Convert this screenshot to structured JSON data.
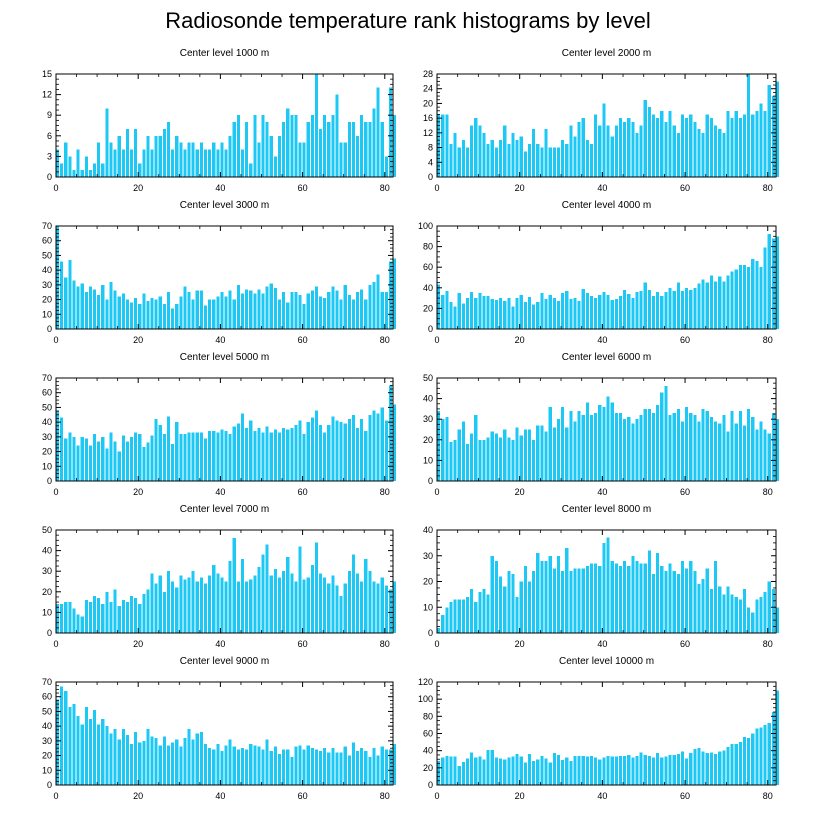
{
  "title": "Radiosonde temperature rank histograms by level",
  "colors": {
    "bar": "#1ec8f5",
    "axis": "#000000",
    "background": "#ffffff"
  },
  "chart_data": [
    {
      "type": "bar",
      "title": "Center level 1000 m",
      "x_start": 0,
      "xlim": [
        0,
        82
      ],
      "xticks": [
        0,
        20,
        40,
        60,
        80
      ],
      "ylim": [
        0,
        15
      ],
      "yticks": [
        0,
        3,
        6,
        9,
        12,
        15
      ],
      "values": [
        4,
        2,
        5,
        3,
        1,
        4,
        1,
        3,
        1,
        2,
        5,
        2,
        10,
        5,
        4,
        6,
        4,
        7,
        4,
        7,
        2,
        4,
        6,
        4,
        6,
        6,
        7,
        8,
        4,
        6,
        5,
        4,
        5,
        5,
        4,
        5,
        4,
        4,
        5,
        4,
        5,
        4,
        6,
        8,
        9,
        4,
        8,
        2,
        9,
        5,
        9,
        8,
        6,
        3,
        6,
        8,
        10,
        9,
        9,
        5,
        5,
        8,
        9,
        15,
        7,
        9,
        8,
        9,
        12,
        5,
        5,
        8,
        8,
        6,
        9,
        8,
        8,
        10,
        13,
        8,
        3,
        13,
        9
      ]
    },
    {
      "type": "bar",
      "title": "Center level 2000 m",
      "x_start": 0,
      "xlim": [
        0,
        82
      ],
      "xticks": [
        0,
        20,
        40,
        60,
        80
      ],
      "ylim": [
        0,
        28
      ],
      "yticks": [
        0,
        4,
        8,
        12,
        16,
        20,
        24,
        28
      ],
      "values": [
        17,
        17,
        17,
        9,
        12,
        8,
        10,
        8,
        14,
        16,
        14,
        12,
        9,
        10,
        8,
        10,
        14,
        9,
        12,
        10,
        11,
        7,
        9,
        13,
        9,
        8,
        13,
        8,
        8,
        8,
        10,
        9,
        14,
        11,
        15,
        16,
        10,
        9,
        17,
        14,
        20,
        14,
        11,
        14,
        16,
        15,
        16,
        15,
        12,
        14,
        21,
        19,
        17,
        16,
        18,
        15,
        18,
        14,
        12,
        17,
        16,
        17,
        15,
        13,
        12,
        17,
        16,
        14,
        13,
        12,
        18,
        16,
        18,
        16,
        17,
        28,
        17,
        18,
        20,
        18,
        25,
        22,
        26
      ]
    },
    {
      "type": "bar",
      "title": "Center level 3000 m",
      "x_start": 0,
      "xlim": [
        0,
        82
      ],
      "xticks": [
        0,
        20,
        40,
        60,
        80
      ],
      "ylim": [
        0,
        70
      ],
      "yticks": [
        0,
        10,
        20,
        30,
        40,
        50,
        60,
        70
      ],
      "values": [
        70,
        46,
        35,
        47,
        33,
        29,
        31,
        25,
        29,
        27,
        23,
        30,
        20,
        32,
        26,
        22,
        24,
        20,
        18,
        21,
        17,
        24,
        19,
        21,
        20,
        22,
        17,
        25,
        14,
        17,
        22,
        29,
        25,
        20,
        26,
        26,
        16,
        20,
        20,
        22,
        25,
        22,
        26,
        20,
        30,
        24,
        27,
        26,
        24,
        27,
        24,
        29,
        31,
        28,
        20,
        25,
        18,
        25,
        25,
        23,
        17,
        24,
        26,
        29,
        22,
        21,
        25,
        29,
        26,
        20,
        30,
        23,
        20,
        25,
        27,
        20,
        30,
        32,
        37,
        25,
        25,
        46,
        48
      ]
    },
    {
      "type": "bar",
      "title": "Center level 4000 m",
      "x_start": 0,
      "xlim": [
        0,
        82
      ],
      "xticks": [
        0,
        20,
        40,
        60,
        80
      ],
      "ylim": [
        0,
        100
      ],
      "yticks": [
        0,
        20,
        40,
        60,
        80,
        100
      ],
      "values": [
        43,
        33,
        37,
        26,
        22,
        35,
        25,
        30,
        36,
        30,
        35,
        32,
        32,
        29,
        28,
        30,
        27,
        30,
        22,
        30,
        33,
        26,
        31,
        24,
        26,
        35,
        29,
        33,
        30,
        27,
        35,
        37,
        29,
        30,
        27,
        39,
        35,
        32,
        30,
        33,
        36,
        33,
        28,
        29,
        32,
        38,
        34,
        30,
        36,
        37,
        45,
        38,
        32,
        36,
        32,
        36,
        40,
        37,
        45,
        37,
        40,
        38,
        40,
        44,
        48,
        45,
        52,
        46,
        51,
        46,
        52,
        56,
        58,
        62,
        62,
        60,
        68,
        66,
        60,
        79,
        92,
        88,
        90
      ]
    },
    {
      "type": "bar",
      "title": "Center level 5000 m",
      "x_start": 0,
      "xlim": [
        0,
        82
      ],
      "xticks": [
        0,
        20,
        40,
        60,
        80
      ],
      "ylim": [
        0,
        70
      ],
      "yticks": [
        0,
        10,
        20,
        30,
        40,
        50,
        60,
        70
      ],
      "values": [
        48,
        43,
        29,
        33,
        30,
        24,
        30,
        29,
        24,
        32,
        27,
        30,
        22,
        33,
        27,
        20,
        31,
        27,
        30,
        33,
        32,
        23,
        26,
        31,
        42,
        38,
        32,
        44,
        25,
        40,
        32,
        32,
        33,
        33,
        33,
        33,
        29,
        34,
        34,
        33,
        35,
        34,
        32,
        37,
        39,
        46,
        36,
        41,
        34,
        36,
        33,
        37,
        33,
        35,
        33,
        36,
        35,
        36,
        38,
        41,
        32,
        40,
        43,
        48,
        38,
        33,
        38,
        44,
        41,
        40,
        39,
        42,
        45,
        36,
        42,
        34,
        45,
        48,
        46,
        50,
        41,
        65,
        52
      ]
    },
    {
      "type": "bar",
      "title": "Center level 6000 m",
      "x_start": 0,
      "xlim": [
        0,
        82
      ],
      "xticks": [
        0,
        20,
        40,
        60,
        80
      ],
      "ylim": [
        0,
        50
      ],
      "yticks": [
        0,
        10,
        20,
        30,
        40,
        50
      ],
      "values": [
        34,
        30,
        31,
        19,
        20,
        25,
        29,
        18,
        23,
        32,
        20,
        20,
        21,
        24,
        23,
        21,
        25,
        21,
        20,
        26,
        22,
        25,
        25,
        20,
        27,
        27,
        24,
        36,
        26,
        30,
        36,
        26,
        34,
        29,
        34,
        32,
        38,
        32,
        33,
        37,
        36,
        41,
        38,
        33,
        33,
        30,
        31,
        28,
        30,
        32,
        35,
        35,
        33,
        37,
        43,
        46,
        32,
        33,
        35,
        29,
        36,
        33,
        32,
        29,
        35,
        34,
        31,
        29,
        28,
        32,
        24,
        34,
        28,
        34,
        27,
        35,
        31,
        25,
        29,
        25,
        23,
        33,
        30
      ]
    },
    {
      "type": "bar",
      "title": "Center level 7000 m",
      "x_start": 0,
      "xlim": [
        0,
        82
      ],
      "xticks": [
        0,
        20,
        40,
        60,
        80
      ],
      "ylim": [
        0,
        50
      ],
      "yticks": [
        0,
        10,
        20,
        30,
        40,
        50
      ],
      "values": [
        14,
        14,
        15,
        15,
        12,
        9,
        8,
        16,
        15,
        18,
        17,
        14,
        20,
        15,
        21,
        13,
        16,
        15,
        18,
        17,
        14,
        19,
        21,
        29,
        24,
        28,
        20,
        30,
        25,
        22,
        28,
        26,
        27,
        30,
        25,
        27,
        24,
        28,
        33,
        29,
        27,
        25,
        35,
        46,
        25,
        36,
        25,
        26,
        28,
        32,
        38,
        43,
        28,
        31,
        27,
        30,
        37,
        29,
        25,
        42,
        26,
        27,
        33,
        44,
        29,
        27,
        24,
        28,
        23,
        18,
        24,
        30,
        38,
        29,
        25,
        36,
        30,
        25,
        24,
        27,
        23,
        21,
        25
      ]
    },
    {
      "type": "bar",
      "title": "Center level 8000 m",
      "x_start": 0,
      "xlim": [
        0,
        82
      ],
      "xticks": [
        0,
        20,
        40,
        60,
        80
      ],
      "ylim": [
        0,
        40
      ],
      "yticks": [
        0,
        10,
        20,
        30,
        40
      ],
      "values": [
        2,
        7,
        10,
        12,
        13,
        13,
        13,
        14,
        17,
        12,
        16,
        17,
        15,
        30,
        28,
        22,
        18,
        24,
        23,
        14,
        20,
        26,
        20,
        24,
        31,
        28,
        28,
        30,
        25,
        30,
        24,
        33,
        24,
        25,
        25,
        25,
        26,
        27,
        27,
        26,
        35,
        37,
        28,
        27,
        26,
        28,
        26,
        30,
        28,
        27,
        27,
        32,
        23,
        31,
        26,
        24,
        27,
        24,
        23,
        28,
        25,
        28,
        24,
        19,
        21,
        25,
        17,
        28,
        18,
        15,
        18,
        15,
        14,
        13,
        17,
        10,
        8,
        13,
        14,
        16,
        20,
        17,
        10
      ]
    },
    {
      "type": "bar",
      "title": "Center level 9000 m",
      "x_start": 0,
      "xlim": [
        0,
        82
      ],
      "xticks": [
        0,
        20,
        40,
        60,
        80
      ],
      "ylim": [
        0,
        70
      ],
      "yticks": [
        0,
        10,
        20,
        30,
        40,
        50,
        60,
        70
      ],
      "values": [
        58,
        67,
        64,
        53,
        55,
        47,
        41,
        53,
        45,
        51,
        41,
        45,
        40,
        35,
        38,
        31,
        38,
        34,
        28,
        36,
        29,
        30,
        38,
        33,
        32,
        27,
        33,
        27,
        29,
        31,
        26,
        32,
        38,
        31,
        35,
        36,
        28,
        25,
        24,
        28,
        23,
        27,
        31,
        26,
        24,
        25,
        24,
        28,
        27,
        26,
        24,
        31,
        23,
        26,
        21,
        24,
        24,
        19,
        26,
        27,
        24,
        27,
        25,
        24,
        23,
        25,
        22,
        25,
        22,
        22,
        26,
        20,
        29,
        23,
        25,
        23,
        19,
        25,
        20,
        26,
        24,
        24,
        28
      ]
    },
    {
      "type": "bar",
      "title": "Center level 10000 m",
      "x_start": 0,
      "xlim": [
        0,
        82
      ],
      "xticks": [
        0,
        20,
        40,
        60,
        80
      ],
      "ylim": [
        0,
        120
      ],
      "yticks": [
        0,
        20,
        40,
        60,
        80,
        100,
        120
      ],
      "values": [
        28,
        32,
        34,
        33,
        33,
        22,
        27,
        31,
        38,
        32,
        33,
        30,
        41,
        41,
        32,
        31,
        30,
        32,
        33,
        36,
        33,
        26,
        36,
        28,
        30,
        34,
        31,
        26,
        37,
        35,
        29,
        32,
        28,
        34,
        34,
        34,
        33,
        34,
        32,
        30,
        32,
        34,
        33,
        33,
        34,
        34,
        35,
        32,
        34,
        38,
        35,
        34,
        32,
        37,
        32,
        33,
        35,
        35,
        36,
        39,
        31,
        37,
        42,
        43,
        39,
        37,
        38,
        36,
        39,
        40,
        44,
        48,
        48,
        50,
        56,
        55,
        60,
        66,
        67,
        70,
        72,
        85,
        110
      ]
    }
  ]
}
